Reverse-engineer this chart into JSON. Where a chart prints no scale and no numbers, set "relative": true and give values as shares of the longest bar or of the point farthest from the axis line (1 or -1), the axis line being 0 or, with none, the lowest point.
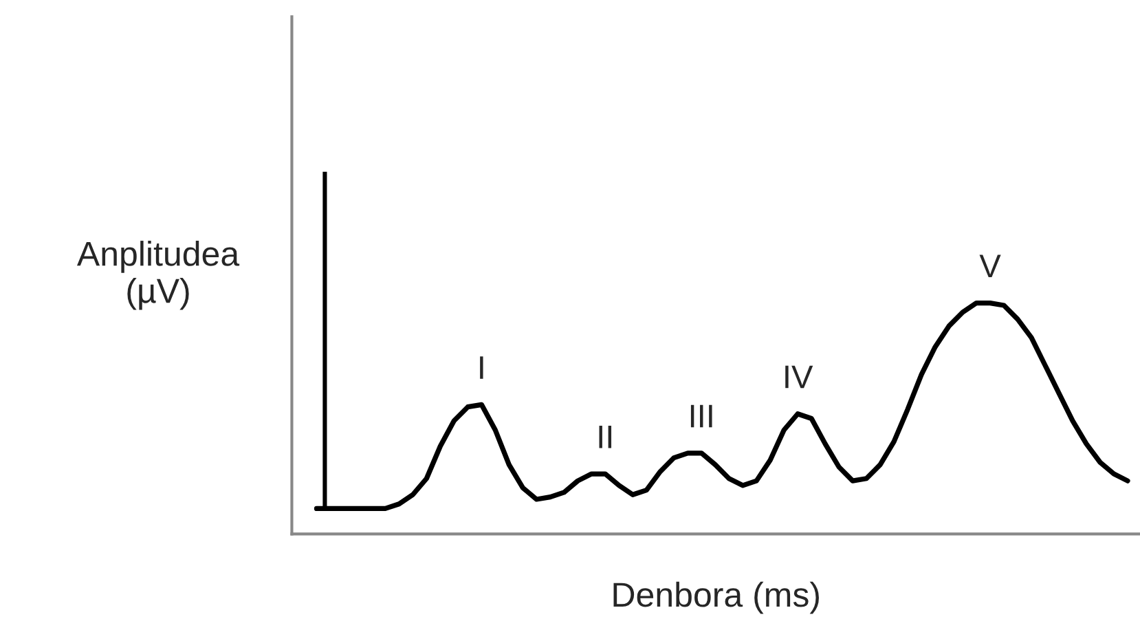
{
  "chart_data": {
    "type": "line",
    "relative": true,
    "xlabel": "Denbora (ms)",
    "ylabel": "Anplitudea\n(µV)",
    "categories": [
      null,
      null,
      null,
      null,
      null,
      null,
      null,
      null,
      null,
      null,
      null,
      null,
      null,
      null,
      null,
      null,
      null,
      null,
      null,
      null,
      null,
      null,
      null,
      null,
      null,
      null,
      null,
      null,
      null,
      null,
      null,
      null,
      null,
      null,
      null,
      null,
      null,
      null,
      null,
      null,
      null,
      null,
      null,
      null,
      null,
      null,
      null,
      null,
      null,
      null,
      null,
      null,
      null,
      null,
      null,
      null,
      null,
      null,
      null,
      null
    ],
    "series": [
      {
        "color": "#000000",
        "values": [
          0.11,
          0.11,
          0.11,
          0.11,
          0.11,
          0.11,
          0.13,
          0.17,
          0.24,
          0.38,
          0.49,
          0.55,
          0.56,
          0.45,
          0.3,
          0.2,
          0.15,
          0.16,
          0.18,
          0.23,
          0.26,
          0.26,
          0.21,
          0.17,
          0.19,
          0.27,
          0.33,
          0.35,
          0.35,
          0.3,
          0.24,
          0.21,
          0.23,
          0.32,
          0.45,
          0.52,
          0.5,
          0.39,
          0.29,
          0.23,
          0.24,
          0.3,
          0.4,
          0.54,
          0.69,
          0.81,
          0.9,
          0.96,
          1.0,
          1.0,
          0.99,
          0.93,
          0.85,
          0.73,
          0.61,
          0.49,
          0.39,
          0.31,
          0.26,
          0.23
        ]
      }
    ],
    "annotations": [
      "I",
      "II",
      "III",
      "IV",
      "V"
    ],
    "legend": false,
    "marker": "none",
    "line_style": "solid"
  }
}
